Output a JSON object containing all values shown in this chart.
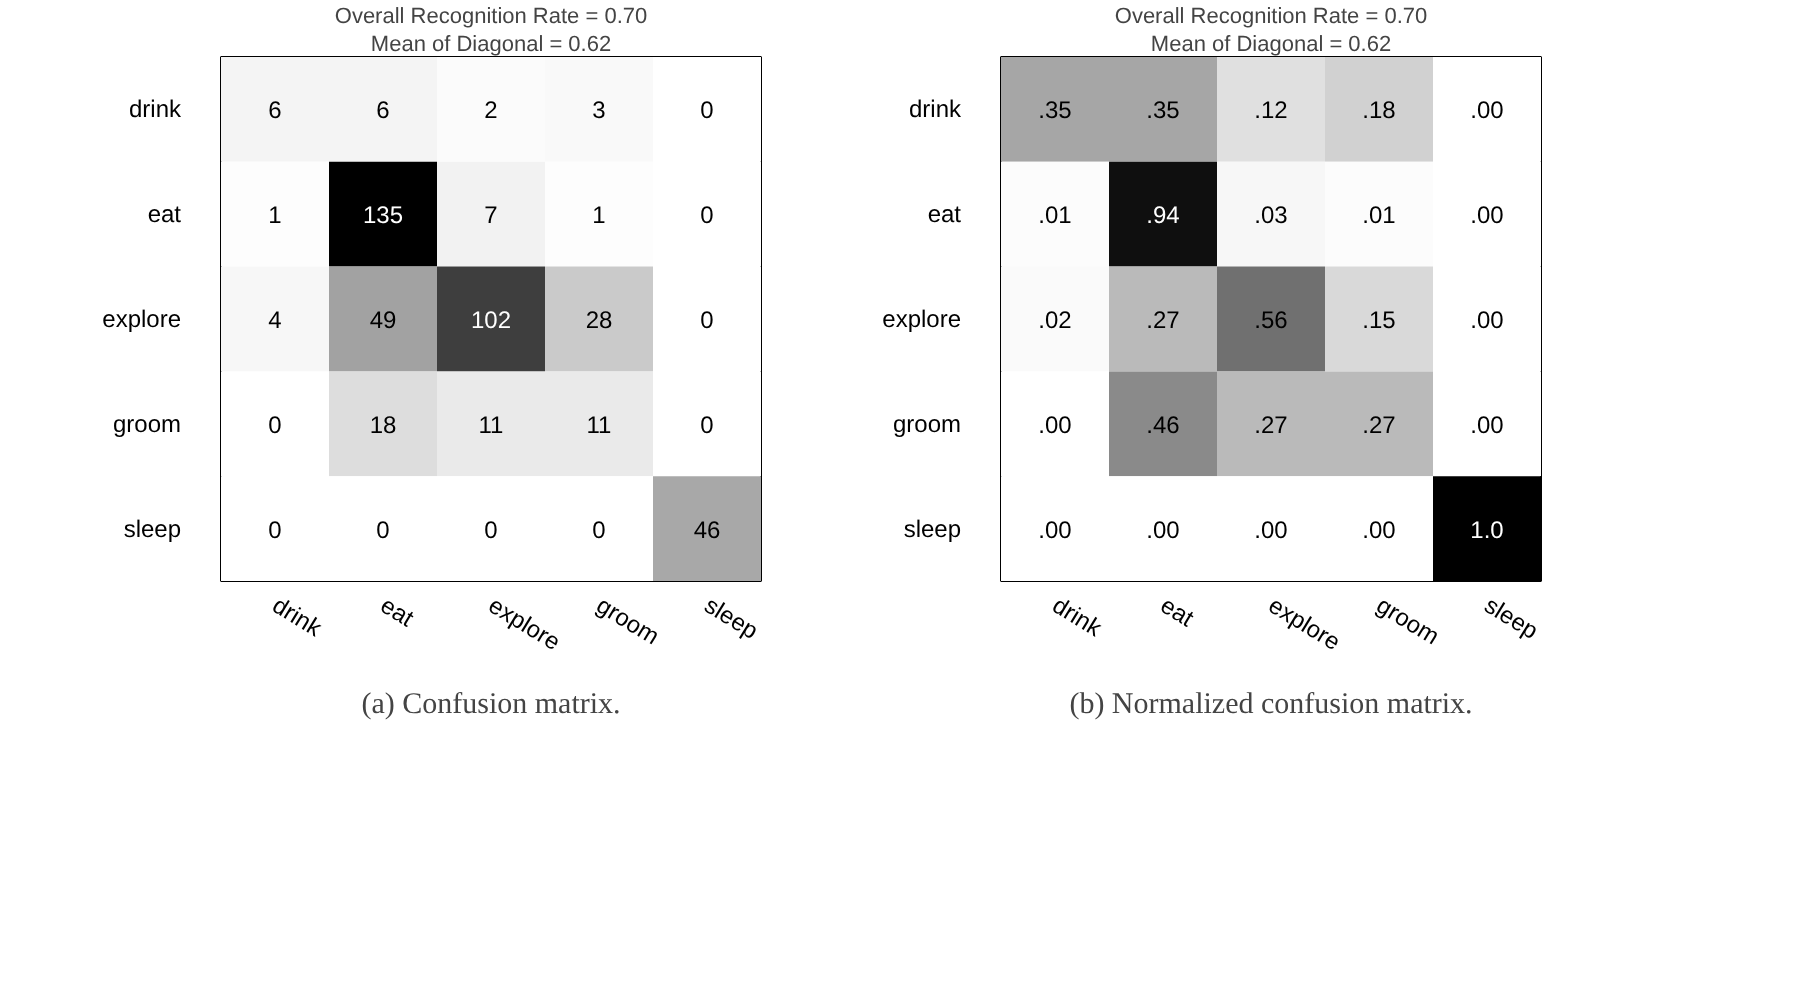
{
  "chart_data": [
    {
      "type": "heatmap",
      "title": "Overall Recognition Rate = 0.70",
      "subtitle": "Mean of Diagonal = 0.62",
      "categories": [
        "drink",
        "eat",
        "explore",
        "groom",
        "sleep"
      ],
      "y_categories": [
        "drink",
        "eat",
        "explore",
        "groom",
        "sleep"
      ],
      "cells": [
        [
          6,
          6,
          2,
          3,
          0
        ],
        [
          1,
          135,
          7,
          1,
          0
        ],
        [
          4,
          49,
          102,
          28,
          0
        ],
        [
          0,
          18,
          11,
          11,
          0
        ],
        [
          0,
          0,
          0,
          0,
          46
        ]
      ],
      "annotations": [
        "(a) Confusion matrix."
      ],
      "grid": false,
      "data_labels": true
    },
    {
      "type": "heatmap",
      "title": "Overall Recognition Rate = 0.70",
      "subtitle": "Mean of Diagonal = 0.62",
      "categories": [
        "drink",
        "eat",
        "explore",
        "groom",
        "sleep"
      ],
      "y_categories": [
        "drink",
        "eat",
        "explore",
        "groom",
        "sleep"
      ],
      "cells": [
        [
          0.35,
          0.35,
          0.12,
          0.18,
          0.0
        ],
        [
          0.01,
          0.94,
          0.03,
          0.01,
          0.0
        ],
        [
          0.02,
          0.27,
          0.56,
          0.15,
          0.0
        ],
        [
          0.0,
          0.46,
          0.27,
          0.27,
          0.0
        ],
        [
          0.0,
          0.0,
          0.0,
          0.0,
          1.0
        ]
      ],
      "cell_labels": [
        [
          ".35",
          ".35",
          ".12",
          ".18",
          ".00"
        ],
        [
          ".01",
          ".94",
          ".03",
          ".01",
          ".00"
        ],
        [
          ".02",
          ".27",
          ".56",
          ".15",
          ".00"
        ],
        [
          ".00",
          ".46",
          ".27",
          ".27",
          ".00"
        ],
        [
          ".00",
          ".00",
          ".00",
          ".00",
          "1.0"
        ]
      ],
      "annotations": [
        "(b) Normalized confusion matrix."
      ],
      "grid": false
    }
  ]
}
